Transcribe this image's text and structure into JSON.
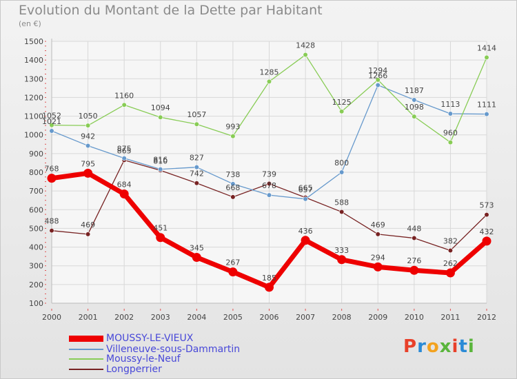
{
  "title": "Evolution du Montant de la Dette par Habitant",
  "subtitle": "(en €)",
  "chart_data": {
    "type": "line",
    "x": [
      "2000",
      "2001",
      "2002",
      "2003",
      "2004",
      "2005",
      "2006",
      "2007",
      "2008",
      "2009",
      "2010",
      "2011",
      "2012"
    ],
    "ylim": [
      100,
      1500
    ],
    "yticks": [
      100,
      200,
      300,
      400,
      500,
      600,
      700,
      800,
      900,
      1000,
      1100,
      1200,
      1300,
      1400,
      1500
    ],
    "grid": true,
    "legend": "bottom-left",
    "series": [
      {
        "name": "MOUSSY-LE-VIEUX",
        "color": "#ee0000",
        "values": [
          768,
          795,
          684,
          451,
          345,
          267,
          185,
          436,
          333,
          294,
          276,
          262,
          432
        ]
      },
      {
        "name": "Villeneuve-sous-Dammartin",
        "color": "#6699cc",
        "values": [
          1021,
          942,
          875,
          816,
          827,
          738,
          678,
          657,
          800,
          1266,
          1187,
          1113,
          1111
        ]
      },
      {
        "name": "Moussy-le-Neuf",
        "color": "#88cc55",
        "values": [
          1052,
          1050,
          1160,
          1094,
          1057,
          993,
          1285,
          1428,
          1125,
          1294,
          1098,
          960,
          1414
        ]
      },
      {
        "name": "Longperrier",
        "color": "#772222",
        "values": [
          488,
          469,
          865,
          810,
          742,
          668,
          739,
          665,
          588,
          469,
          448,
          382,
          573
        ]
      }
    ]
  },
  "logo": {
    "text": "Proxiti",
    "colors": [
      "#e8402a",
      "#2a8ad6",
      "#f3a21f",
      "#5ab53c",
      "#e8402a",
      "#2a8ad6",
      "#5ab53c"
    ]
  }
}
